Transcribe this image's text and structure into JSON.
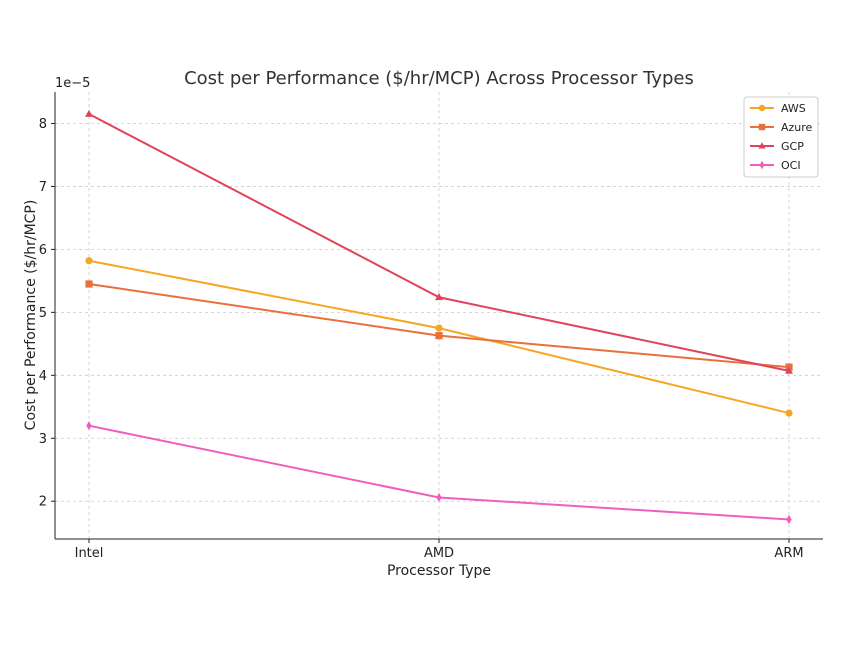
{
  "chart_data": {
    "type": "line",
    "title": "Cost per Performance ($/hr/MCP) Across Processor Types",
    "xlabel": "Processor Type",
    "ylabel": "Cost per Performance ($/hr/MCP)",
    "y_offset_label": "1e−5",
    "categories": [
      "Intel",
      "AMD",
      "ARM"
    ],
    "ylim": [
      1.4,
      8.5
    ],
    "yticks": [
      2,
      3,
      4,
      5,
      6,
      7,
      8
    ],
    "ytick_labels": [
      "2",
      "3",
      "4",
      "5",
      "6",
      "7",
      "8"
    ],
    "y_scale_factor": "1e-5",
    "grid": true,
    "legend_position": "top-right",
    "series": [
      {
        "name": "AWS",
        "color": "#f5a623",
        "marker": "circle",
        "values": [
          5.82,
          4.75,
          3.4
        ]
      },
      {
        "name": "Azure",
        "color": "#e8703a",
        "marker": "square",
        "values": [
          5.45,
          4.63,
          4.13
        ]
      },
      {
        "name": "GCP",
        "color": "#e0445a",
        "marker": "triangle",
        "values": [
          8.15,
          5.24,
          4.07
        ]
      },
      {
        "name": "OCI",
        "color": "#ee5fbb",
        "marker": "diamond",
        "values": [
          3.2,
          2.06,
          1.71
        ]
      }
    ]
  }
}
